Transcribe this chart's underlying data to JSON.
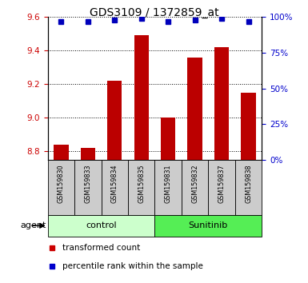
{
  "title": "GDS3109 / 1372859_at",
  "samples": [
    "GSM159830",
    "GSM159833",
    "GSM159834",
    "GSM159835",
    "GSM159831",
    "GSM159832",
    "GSM159837",
    "GSM159838"
  ],
  "transformed_counts": [
    8.84,
    8.82,
    9.22,
    9.49,
    9.0,
    9.36,
    9.42,
    9.15
  ],
  "percentile_ranks": [
    97,
    97,
    98,
    99,
    97,
    98,
    99,
    97
  ],
  "ylim_left": [
    8.75,
    9.6
  ],
  "ylim_right": [
    0,
    100
  ],
  "yticks_left": [
    8.8,
    9.0,
    9.2,
    9.4,
    9.6
  ],
  "yticks_right": [
    0,
    25,
    50,
    75,
    100
  ],
  "group_labels": [
    "control",
    "Sunitinib"
  ],
  "group_colors": [
    "#ccffcc",
    "#55ee55"
  ],
  "bar_color": "#bb0000",
  "dot_color": "#0000bb",
  "left_label_color": "#cc0000",
  "right_label_color": "#0000cc",
  "legend_items": [
    "transformed count",
    "percentile rank within the sample"
  ],
  "legend_colors": [
    "#cc0000",
    "#0000cc"
  ],
  "bar_width": 0.55,
  "sample_box_color": "#cccccc",
  "n_control": 4,
  "n_sunitinib": 4
}
